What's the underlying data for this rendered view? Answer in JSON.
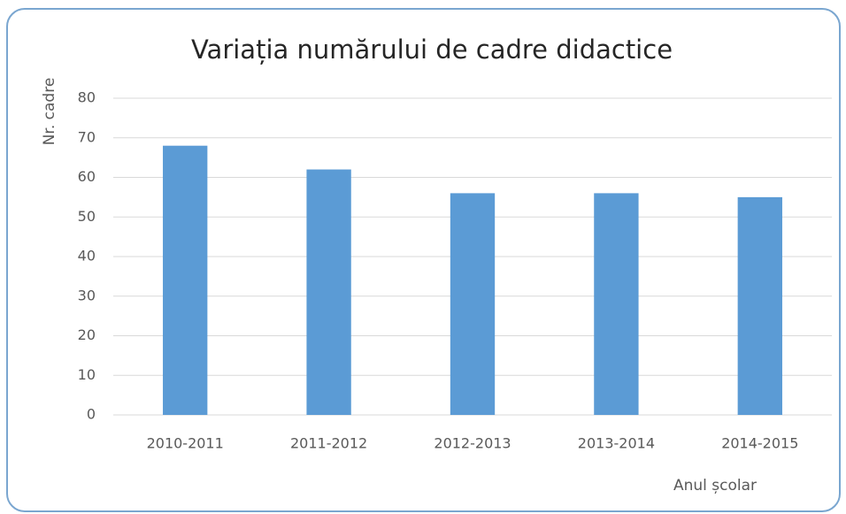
{
  "chart_data": {
    "type": "bar",
    "title": "Variația numărului de cadre didactice",
    "y_label": "Nr. cadre",
    "x_label": "Anul școlar",
    "categories": [
      "2010-2011",
      "2011-2012",
      "2012-2013",
      "2013-2014",
      "2014-2015"
    ],
    "values": [
      68,
      62,
      56,
      56,
      55
    ],
    "color": "#5b9bd5",
    "ylim": [
      0,
      80
    ],
    "yticks": [
      0,
      10,
      20,
      30,
      40,
      50,
      60,
      70,
      80
    ],
    "grid": true
  }
}
